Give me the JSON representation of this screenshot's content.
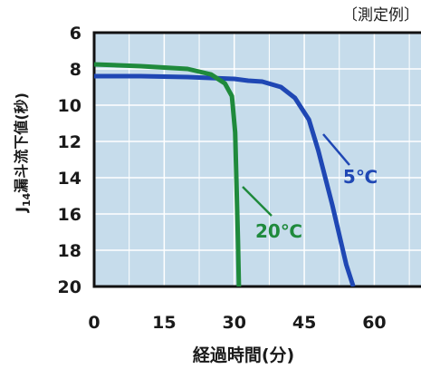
{
  "chart_data": {
    "type": "line",
    "title": "",
    "corner_note": "〔測定例〕",
    "xlabel": "経過時間(分)",
    "ylabel": "J14漏斗流下値(秒)",
    "ylabel_parts": {
      "prefix": "J",
      "subscript": "14",
      "rest": "漏斗流下値(秒)"
    },
    "xlim": [
      0,
      70
    ],
    "ylim": [
      20,
      6
    ],
    "y_inverted": true,
    "x_ticks": [
      0,
      15,
      30,
      45,
      60
    ],
    "y_ticks": [
      6,
      8,
      10,
      12,
      14,
      16,
      18,
      20
    ],
    "grid": true,
    "plot_background": "#c6dceb",
    "grid_color": "#ffffff",
    "series": [
      {
        "name": "5℃",
        "color": "#1f47b4",
        "x": [
          0,
          10,
          20,
          30,
          33,
          36,
          40,
          43,
          46,
          48,
          51,
          54,
          55.5
        ],
        "y": [
          8.4,
          8.4,
          8.45,
          8.55,
          8.65,
          8.7,
          9.0,
          9.6,
          10.8,
          12.5,
          15.5,
          18.8,
          20
        ]
      },
      {
        "name": "20℃",
        "color": "#1f8a3c",
        "x": [
          0,
          10,
          20,
          25,
          28,
          29.5,
          30.2,
          30.5,
          30.8,
          31
        ],
        "y": [
          7.75,
          7.85,
          8.0,
          8.3,
          8.8,
          9.5,
          11.5,
          14.5,
          17.5,
          20
        ]
      }
    ],
    "annotations": [
      {
        "text": "5℃",
        "series": "5℃"
      },
      {
        "text": "20℃",
        "series": "20℃"
      }
    ]
  }
}
